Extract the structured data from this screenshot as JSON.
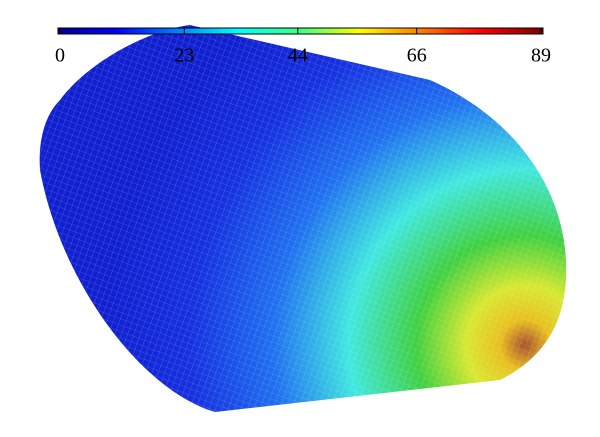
{
  "chart_data": {
    "type": "colorbar",
    "xlim": [
      0,
      89
    ],
    "xticks": [
      0,
      23,
      44,
      66,
      89
    ]
  }
}
